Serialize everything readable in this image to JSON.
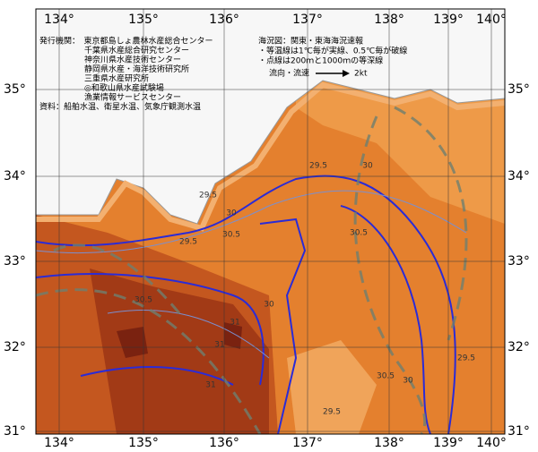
{
  "map": {
    "lon_labels": [
      "134°",
      "135°",
      "136°",
      "137°",
      "138°",
      "139°",
      "140°"
    ],
    "lat_labels": [
      "35°",
      "34°",
      "33°",
      "32°",
      "31°"
    ],
    "issuer_lines": [
      "発行機関：　東京都島しょ農林水産総合センター",
      "千葉県水産総合研究センター",
      "神奈川県水産技術センター",
      "静岡県水産・海洋技術研究所",
      "三重県水産研究所",
      "◎和歌山県水産試験場",
      "漁業情報サービスセンター",
      "資料：船舶水温、衛星水温、気象庁観測水温"
    ],
    "notes": [
      "海況図：関東・東海海況速報",
      "・等温線は1℃毎が実線、0.5℃毎が破線",
      "・点線は200ｍと1000ｍの等深線"
    ],
    "legend": {
      "flow_label": "流向・流速",
      "speed_label": "2kt"
    },
    "contour_labels": [
      "29.5",
      "30",
      "30.5",
      "31",
      "31",
      "30.5",
      "29.5",
      "30",
      "30.5",
      "29.5",
      "30",
      "31",
      "30.5",
      "29.5",
      "30",
      "29.5"
    ]
  }
}
